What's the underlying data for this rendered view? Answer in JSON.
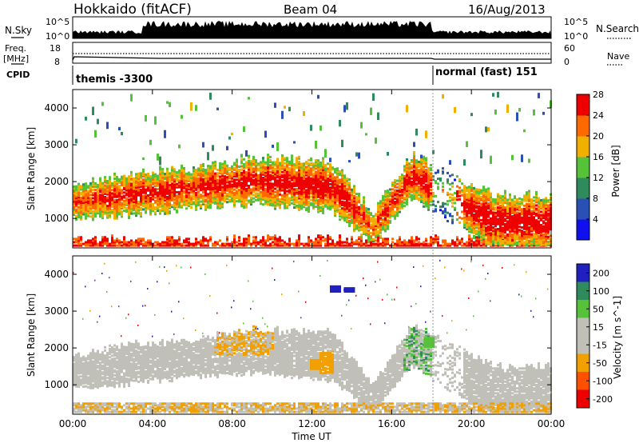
{
  "header": {
    "site": "Hokkaido (fitACF)",
    "beam": "Beam 04",
    "date": "16/Aug/2013"
  },
  "noise_panel": {
    "left_label": "N.Sky",
    "right_label": "N.Search",
    "left_top": "10^5",
    "left_bottom": "10^0",
    "right_top": "10^5",
    "right_bottom": "10^0"
  },
  "freq_panel": {
    "left_label_1": "Freq.",
    "left_label_2": "[MHz]",
    "right_label": "Nave",
    "left_top": "18",
    "left_bottom": "8",
    "right_top": "60",
    "right_bottom": "0"
  },
  "cpid_panel": {
    "label": "CPID",
    "mode_1": "themis -3300",
    "mode_2": "normal (fast) 151"
  },
  "x_axis": {
    "label": "Time UT",
    "ticks": [
      "00:00",
      "04:00",
      "08:00",
      "12:00",
      "16:00",
      "20:00",
      "00:00"
    ]
  },
  "chart_data": [
    {
      "type": "heatmap",
      "title": "",
      "xlabel": "Time UT",
      "ylabel": "Slant Range [km]",
      "x_ticks": [
        "00:00",
        "04:00",
        "08:00",
        "12:00",
        "16:00",
        "20:00",
        "00:00"
      ],
      "y_ticks": [
        1000,
        2000,
        3000,
        4000
      ],
      "ylim": [
        200,
        4500
      ],
      "colorbar": {
        "label": "Power [dB]",
        "ticks": [
          4,
          8,
          12,
          16,
          20,
          24,
          28
        ],
        "colors": [
          "#1010ee",
          "#2a4fb5",
          "#2f8a5c",
          "#56c23a",
          "#f1b000",
          "#ff6a00",
          "#ee0000"
        ]
      },
      "summary": [
        {
          "x": "00:30",
          "range_km": [
            1200,
            1800
          ],
          "power_db": 26
        },
        {
          "x": "03:00",
          "range_km": [
            1300,
            2100
          ],
          "power_db": 24
        },
        {
          "x": "06:00",
          "range_km": [
            1500,
            2200
          ],
          "power_db": 26
        },
        {
          "x": "09:00",
          "range_km": [
            1600,
            2500
          ],
          "power_db": 27
        },
        {
          "x": "13:00",
          "range_km": [
            1400,
            2400
          ],
          "power_db": 26
        },
        {
          "x": "15:00",
          "range_km": [
            500,
            1000
          ],
          "power_db": 29
        },
        {
          "x": "17:00",
          "range_km": [
            1800,
            2600
          ],
          "power_db": 22
        },
        {
          "x": "21:00",
          "range_km": [
            400,
            1500
          ],
          "power_db": 27
        }
      ]
    },
    {
      "type": "heatmap",
      "title": "",
      "xlabel": "Time UT",
      "ylabel": "Slant Range [km]",
      "x_ticks": [
        "00:00",
        "04:00",
        "08:00",
        "12:00",
        "16:00",
        "20:00",
        "00:00"
      ],
      "y_ticks": [
        1000,
        2000,
        3000,
        4000
      ],
      "ylim": [
        200,
        4500
      ],
      "colorbar": {
        "label": "Velocity [m s^-1]",
        "ticks": [
          200,
          100,
          50,
          15,
          -15,
          -50,
          -100,
          -200
        ],
        "colors": [
          "#2020c0",
          "#2f8a5c",
          "#56c23a",
          "#c0c0b8",
          "#c0c0b8",
          "#f1a000",
          "#ff5000",
          "#ee0000"
        ]
      },
      "summary": [
        {
          "x": "02:00",
          "range_km": [
            800,
            1800
          ],
          "velocity_ms": 0
        },
        {
          "x": "08:00",
          "range_km": [
            900,
            2000
          ],
          "velocity_ms": 0
        },
        {
          "x": "12:40",
          "range_km": [
            1300,
            1900
          ],
          "velocity_ms": -60
        },
        {
          "x": "13:30",
          "range_km": [
            3500,
            3700
          ],
          "velocity_ms": 150
        },
        {
          "x": "17:30",
          "range_km": [
            1500,
            2300
          ],
          "velocity_ms": 60
        }
      ]
    }
  ]
}
